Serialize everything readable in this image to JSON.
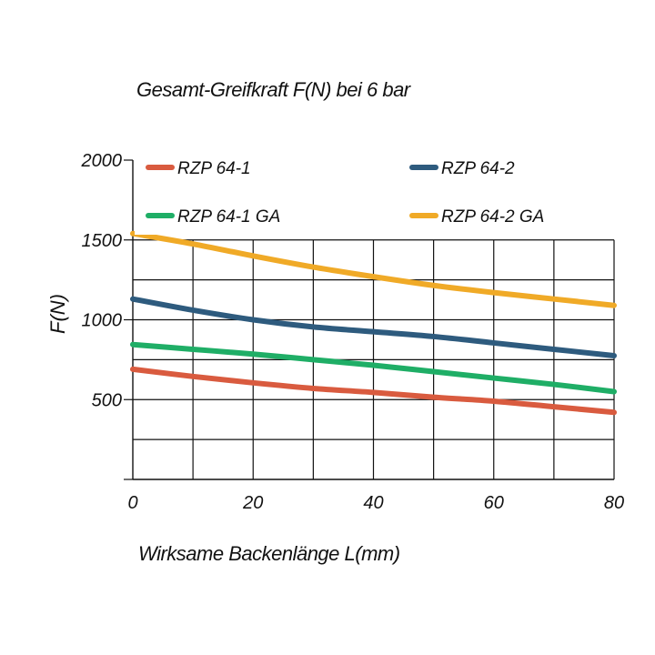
{
  "chart_data": {
    "type": "line",
    "title": "Gesamt-Greifkraft F(N) bei 6 bar",
    "xlabel": "Wirksame Backenlänge L(mm)",
    "ylabel": "F(N)",
    "xlim": [
      0,
      80
    ],
    "ylim": [
      0,
      2000
    ],
    "x_ticks": [
      "0",
      "20",
      "40",
      "60",
      "80"
    ],
    "y_ticks": [
      "500",
      "1000",
      "1500",
      "2000"
    ],
    "grid": true,
    "legend_placement": "top",
    "x": [
      0,
      10,
      20,
      30,
      40,
      50,
      60,
      70,
      80
    ],
    "series": [
      {
        "name": "RZP 64-1",
        "color": "#d95b3f",
        "values": [
          690,
          645,
          605,
          570,
          545,
          515,
          490,
          455,
          420
        ]
      },
      {
        "name": "RZP 64-2",
        "color": "#2e5b7e",
        "values": [
          1130,
          1060,
          1000,
          955,
          925,
          895,
          855,
          815,
          775
        ]
      },
      {
        "name": "RZP 64-1 GA",
        "color": "#1fae66",
        "values": [
          845,
          815,
          785,
          750,
          715,
          675,
          635,
          595,
          550
        ]
      },
      {
        "name": "RZP 64-2 GA",
        "color": "#f0aa27",
        "values": [
          1540,
          1475,
          1400,
          1330,
          1270,
          1215,
          1170,
          1130,
          1090
        ]
      }
    ]
  }
}
